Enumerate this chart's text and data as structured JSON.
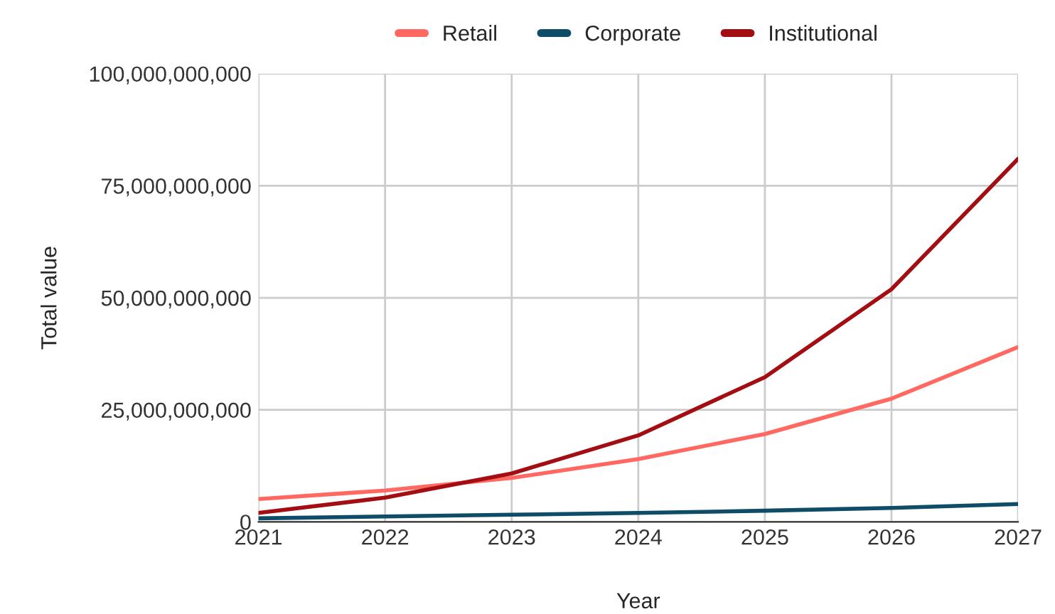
{
  "chart_data": {
    "type": "line",
    "xlabel": "Year",
    "ylabel": "Total value",
    "x": [
      2021,
      2022,
      2023,
      2024,
      2025,
      2026,
      2027
    ],
    "series": [
      {
        "name": "Retail",
        "color": "#ff6961",
        "values": [
          5100000000,
          7000000000,
          9800000000,
          14000000000,
          19600000000,
          27500000000,
          39000000000
        ]
      },
      {
        "name": "Corporate",
        "color": "#0f4c68",
        "values": [
          800000000,
          1200000000,
          1600000000,
          2000000000,
          2500000000,
          3100000000,
          4000000000
        ]
      },
      {
        "name": "Institutional",
        "color": "#a30e12",
        "values": [
          2000000000,
          5400000000,
          10800000000,
          19300000000,
          32300000000,
          51900000000,
          81000000000
        ]
      }
    ],
    "xlim": [
      2021,
      2027
    ],
    "xticks": [
      2021,
      2022,
      2023,
      2024,
      2025,
      2026,
      2027
    ],
    "ylim": [
      0,
      100000000000
    ],
    "yticks": [
      {
        "value": 0,
        "label": "0"
      },
      {
        "value": 25000000000,
        "label": "25,000,000,000"
      },
      {
        "value": 50000000000,
        "label": "50,000,000,000"
      },
      {
        "value": 75000000000,
        "label": "75,000,000,000"
      },
      {
        "value": 100000000000,
        "label": "100,000,000,000"
      }
    ],
    "grid": true,
    "legend": "top",
    "line_style": "solid",
    "marker": "none"
  }
}
